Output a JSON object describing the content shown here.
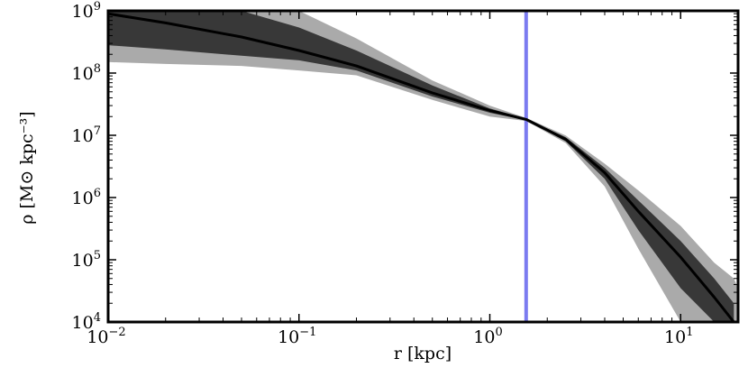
{
  "chart_data": {
    "type": "line",
    "title": "",
    "xlabel": "r [kpc]",
    "ylabel": "ρ [M⊙ kpc⁻³]",
    "x_scale": "log",
    "y_scale": "log",
    "xlim": [
      0.01,
      20
    ],
    "ylim": [
      10000,
      1000000000
    ],
    "grid": false,
    "x_ticks": [
      {
        "value": 0.01,
        "base": "10",
        "exp": "−2"
      },
      {
        "value": 0.1,
        "base": "10",
        "exp": "−1"
      },
      {
        "value": 1,
        "base": "10",
        "exp": "0"
      },
      {
        "value": 10,
        "base": "10",
        "exp": "1"
      }
    ],
    "y_ticks": [
      {
        "value": 10000,
        "base": "10",
        "exp": "4"
      },
      {
        "value": 100000,
        "base": "10",
        "exp": "5"
      },
      {
        "value": 1000000,
        "base": "10",
        "exp": "6"
      },
      {
        "value": 10000000,
        "base": "10",
        "exp": "7"
      },
      {
        "value": 100000000,
        "base": "10",
        "exp": "8"
      },
      {
        "value": 1000000000,
        "base": "10",
        "exp": "9"
      }
    ],
    "vertical_line": {
      "x": 1.55,
      "color": "#7b7bf0"
    },
    "series": [
      {
        "role": "median",
        "color": "#000000",
        "x": [
          0.01,
          0.02,
          0.05,
          0.1,
          0.2,
          0.5,
          1.0,
          1.55,
          2.5,
          4.0,
          6.0,
          10.0,
          15.0,
          19.0
        ],
        "values": [
          900000000,
          640000000,
          380000000,
          230000000,
          130000000,
          48000000,
          25000000,
          18000000,
          8600000,
          2500000,
          600000,
          110000,
          25000,
          10000
        ]
      },
      {
        "role": "inner-band",
        "color": "#383838",
        "x": [
          0.01,
          0.02,
          0.05,
          0.1,
          0.2,
          0.5,
          1.0,
          1.55,
          2.5,
          4.0,
          6.0,
          10.0,
          15.0,
          19.0
        ],
        "upper": [
          1000000000,
          1000000000,
          1000000000,
          540000000,
          230000000,
          63000000,
          27000000,
          18500000,
          9300000,
          3000000,
          900000,
          200000,
          50000,
          20000
        ],
        "lower": [
          280000000,
          240000000,
          190000000,
          160000000,
          110000000,
          42000000,
          23000000,
          17500000,
          8000000,
          2000000,
          300000,
          35000,
          10000,
          10000
        ]
      },
      {
        "role": "outer-band",
        "color": "#aaaaaa",
        "x": [
          0.01,
          0.02,
          0.05,
          0.1,
          0.2,
          0.5,
          1.0,
          1.55,
          2.5,
          4.0,
          6.0,
          10.0,
          15.0,
          19.0,
          20.0
        ],
        "upper": [
          1000000000,
          1000000000,
          1000000000,
          1000000000,
          360000000,
          76000000,
          30000000,
          19000000,
          9900000,
          3500000,
          1300000,
          350000,
          90000,
          50000,
          35000
        ],
        "lower": [
          150000000,
          140000000,
          130000000,
          110000000,
          92000000,
          37000000,
          20000000,
          17000000,
          7500000,
          1500000,
          150000,
          10000,
          10000,
          10000,
          10000
        ]
      }
    ]
  }
}
